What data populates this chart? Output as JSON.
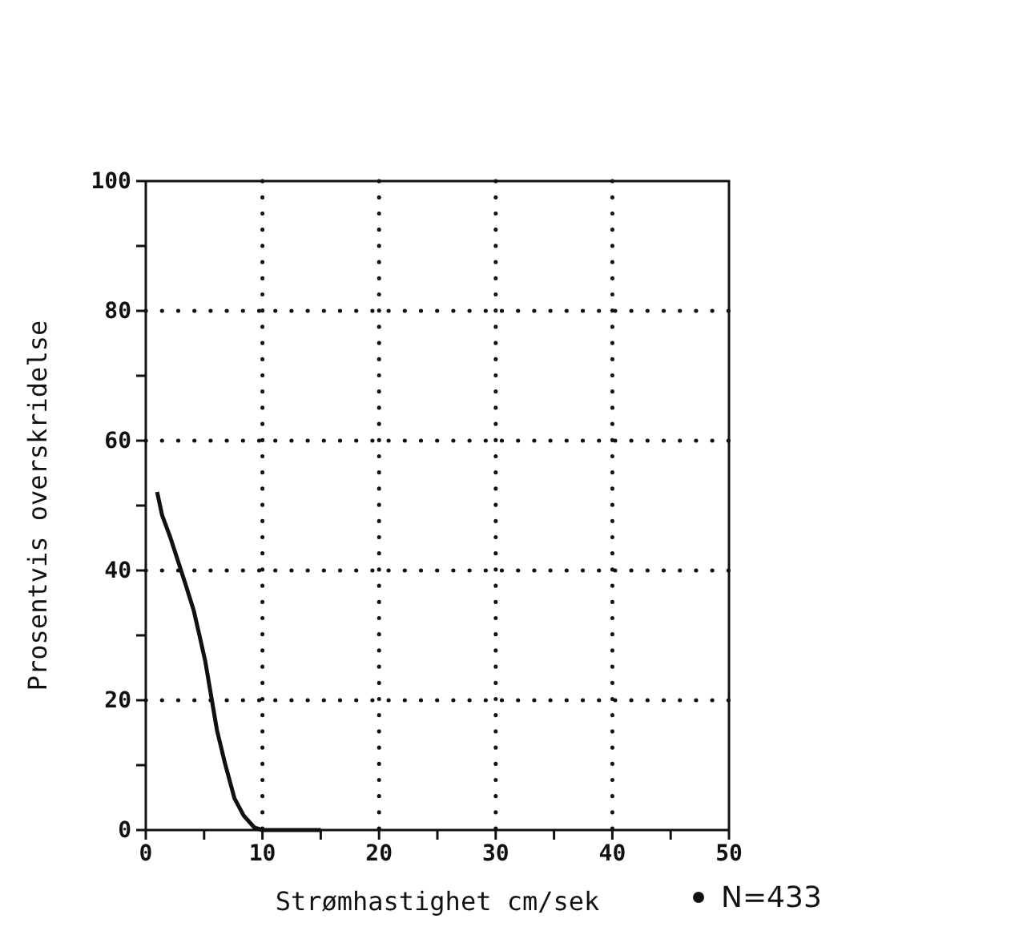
{
  "chart_data": {
    "type": "line",
    "xlabel": "Strømhastighet cm/sek",
    "ylabel": "Prosentvis overskridelse",
    "x": [
      0.97,
      1.4,
      2.1,
      2.7,
      3.4,
      4.1,
      4.6,
      5.1,
      5.6,
      6.1,
      6.8,
      7.6,
      8.4,
      9.3,
      10,
      15
    ],
    "series": [
      {
        "color": "#111111",
        "values": [
          52.1,
          48.5,
          45.1,
          41.8,
          37.9,
          33.9,
          30,
          26,
          20.7,
          15.4,
          10.2,
          4.9,
          2.2,
          0.4,
          0,
          0
        ]
      }
    ],
    "xlim": [
      0,
      50
    ],
    "ylim": [
      0,
      100
    ],
    "xticks": [
      0,
      {
        "value": 5,
        "label": null
      },
      10,
      {
        "value": 15,
        "label": null
      },
      20,
      {
        "value": 25,
        "label": null
      },
      30,
      {
        "value": 35,
        "label": null
      },
      40,
      {
        "value": 45,
        "label": null
      },
      50
    ],
    "yticks": [
      0,
      {
        "value": 10,
        "label": null
      },
      20,
      {
        "value": 30,
        "label": null
      },
      40,
      {
        "value": 50,
        "label": null
      },
      60,
      {
        "value": 70,
        "label": null
      },
      80,
      {
        "value": 90,
        "label": null
      },
      100
    ],
    "grid": true,
    "marker": "none",
    "line_style": "solid",
    "annotations": [
      "N=433"
    ]
  }
}
